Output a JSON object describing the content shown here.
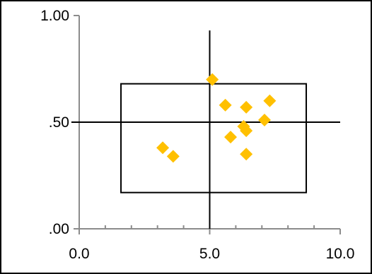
{
  "chart_data": {
    "type": "scatter",
    "title": "",
    "xlabel": "",
    "ylabel": "",
    "xlim": [
      0,
      10
    ],
    "ylim": [
      0,
      1
    ],
    "x_ticks": [
      {
        "value": 0,
        "label": "0.0"
      },
      {
        "value": 5,
        "label": "5.0"
      },
      {
        "value": 10,
        "label": "10.0"
      }
    ],
    "x_minor_ticks": [
      1,
      2,
      3,
      4,
      6,
      7,
      8,
      9
    ],
    "y_ticks": [
      {
        "value": 0,
        "label": ".00"
      },
      {
        "value": 0.5,
        "label": ".50"
      },
      {
        "value": 1,
        "label": "1.00"
      }
    ],
    "grid": false,
    "legend": "none",
    "marker": "diamond",
    "series": [
      {
        "name": "",
        "color": "#FFC000",
        "points": [
          {
            "x": 3.2,
            "y": 0.38
          },
          {
            "x": 3.6,
            "y": 0.34
          },
          {
            "x": 5.1,
            "y": 0.7
          },
          {
            "x": 5.6,
            "y": 0.58
          },
          {
            "x": 5.8,
            "y": 0.43
          },
          {
            "x": 6.3,
            "y": 0.48
          },
          {
            "x": 6.4,
            "y": 0.46
          },
          {
            "x": 6.4,
            "y": 0.57
          },
          {
            "x": 6.4,
            "y": 0.35
          },
          {
            "x": 7.1,
            "y": 0.51
          },
          {
            "x": 7.3,
            "y": 0.6
          }
        ]
      }
    ],
    "reference_lines": {
      "vertical_x": 5.0,
      "horizontal_y": 0.5,
      "vertical_y_range": [
        0,
        0.93
      ],
      "horizontal_x_range": [
        -0.3,
        10
      ]
    },
    "box": {
      "x0": 1.6,
      "x1": 8.7,
      "y0": 0.17,
      "y1": 0.68
    }
  }
}
